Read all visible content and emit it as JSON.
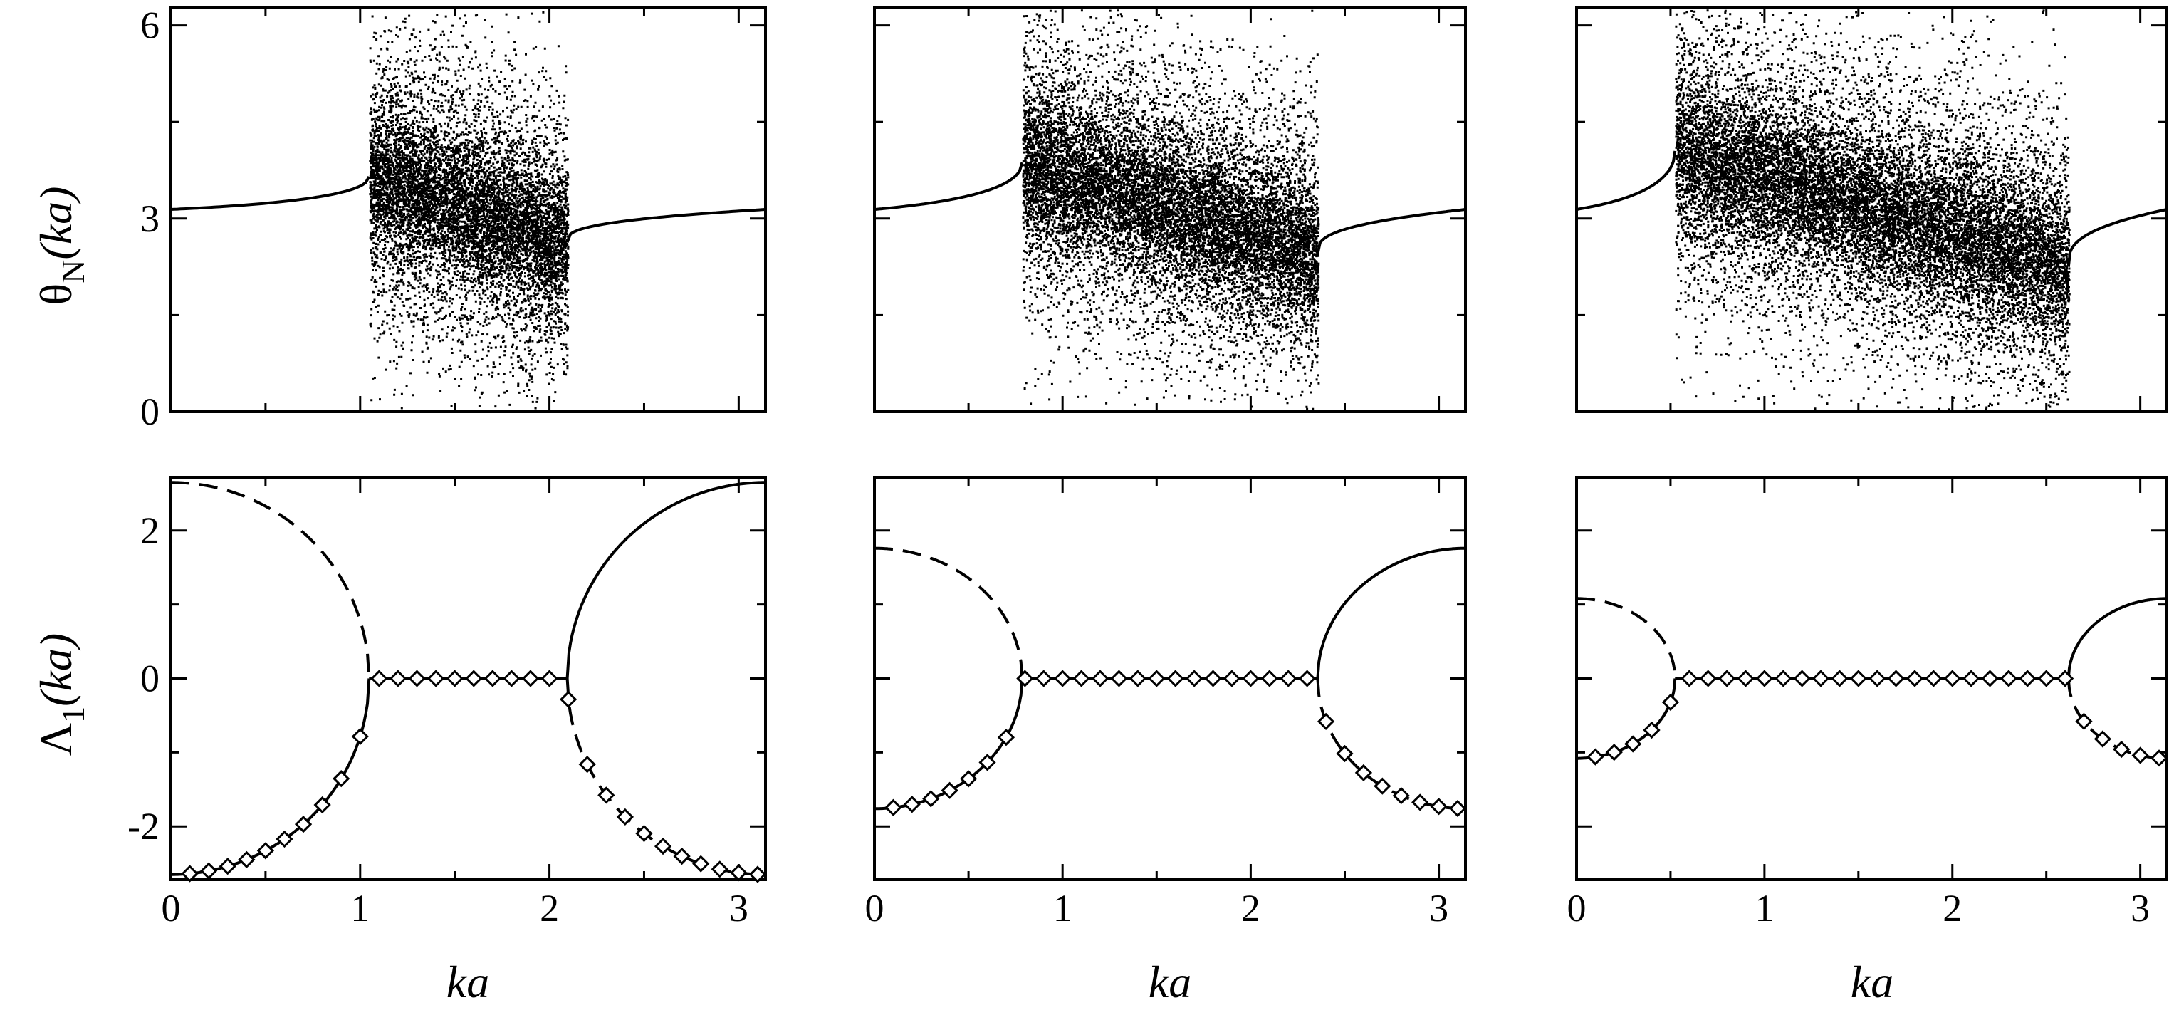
{
  "figure": {
    "x_label_main": "ka",
    "ylabels": {
      "top": {
        "symbol": "θ",
        "sub": "N",
        "arg": "(ka)"
      },
      "bottom": {
        "symbol": "Λ",
        "sub": "1",
        "arg": "(ka)"
      }
    }
  },
  "chart_data": [
    {
      "type": "scatter",
      "panel": "top-1",
      "xlim": [
        0,
        3.1416
      ],
      "ylim": [
        0,
        6.2832
      ],
      "xticks": [
        0,
        1,
        2,
        3
      ],
      "yticks": [
        0,
        3,
        6
      ],
      "ytick_labels": [
        "0",
        "3",
        "6"
      ],
      "xtick_labels_shown": false,
      "band": {
        "x_start": 1.047,
        "x_end": 2.094
      },
      "curve_left": {
        "x": [
          0,
          0.5,
          0.9,
          1.047
        ],
        "y": [
          3.1416,
          3.22,
          3.38,
          3.65
        ]
      },
      "curve_right": {
        "x": [
          2.094,
          2.3,
          2.7,
          3.1416
        ],
        "y": [
          2.63,
          2.87,
          3.02,
          3.1416
        ]
      },
      "scatter_density_center": {
        "x": [
          1.047,
          2.094
        ],
        "y": [
          3.65,
          2.63
        ]
      }
    },
    {
      "type": "scatter",
      "panel": "top-2",
      "xlim": [
        0,
        3.1416
      ],
      "ylim": [
        0,
        6.2832
      ],
      "xticks": [
        0,
        1,
        2,
        3
      ],
      "yticks": [
        0,
        3,
        6
      ],
      "xtick_labels_shown": false,
      "band": {
        "x_start": 0.785,
        "x_end": 2.356
      },
      "curve_left": {
        "x": [
          0,
          0.4,
          0.7,
          0.785
        ],
        "y": [
          3.1416,
          3.32,
          3.6,
          3.87
        ]
      },
      "curve_right": {
        "x": [
          2.356,
          2.6,
          2.9,
          3.1416
        ],
        "y": [
          2.45,
          2.75,
          2.95,
          3.1416
        ]
      },
      "scatter_density_center": {
        "x": [
          0.785,
          2.356
        ],
        "y": [
          3.87,
          2.45
        ]
      }
    },
    {
      "type": "scatter",
      "panel": "top-3",
      "xlim": [
        0,
        3.1416
      ],
      "ylim": [
        0,
        6.2832
      ],
      "xticks": [
        0,
        1,
        2,
        3
      ],
      "yticks": [
        0,
        3,
        6
      ],
      "xtick_labels_shown": false,
      "band": {
        "x_start": 0.524,
        "x_end": 2.618
      },
      "curve_left": {
        "x": [
          0,
          0.3,
          0.45,
          0.524
        ],
        "y": [
          3.1416,
          3.5,
          3.85,
          4.05
        ]
      },
      "curve_right": {
        "x": [
          2.618,
          2.8,
          3.0,
          3.1416
        ],
        "y": [
          2.25,
          2.6,
          2.9,
          3.1416
        ]
      },
      "scatter_density_center": {
        "x": [
          0.524,
          2.618
        ],
        "y": [
          4.05,
          2.25
        ]
      }
    },
    {
      "type": "line",
      "panel": "bottom-1",
      "xlim": [
        0,
        3.1416
      ],
      "ylim": [
        -2.72,
        2.72
      ],
      "xticks": [
        0,
        1,
        2,
        3
      ],
      "xtick_labels": [
        "0",
        "1",
        "2",
        "3"
      ],
      "yticks": [
        -2,
        0,
        2
      ],
      "ytick_labels": [
        "-2",
        "0",
        "2"
      ],
      "Amax": 2.65,
      "gap": [
        1.047,
        2.094
      ],
      "diamonds_x": [
        0.1,
        0.2,
        0.3,
        0.4,
        0.5,
        0.6,
        0.7,
        0.8,
        0.9,
        1.0,
        1.1,
        1.2,
        1.3,
        1.4,
        1.5,
        1.6,
        1.7,
        1.8,
        1.9,
        2.0,
        2.1,
        2.2,
        2.3,
        2.4,
        2.5,
        2.6,
        2.7,
        2.8,
        2.9,
        3.0,
        3.1
      ]
    },
    {
      "type": "line",
      "panel": "bottom-2",
      "xlim": [
        0,
        3.1416
      ],
      "ylim": [
        -2.72,
        2.72
      ],
      "xticks": [
        0,
        1,
        2,
        3
      ],
      "xtick_labels": [
        "0",
        "1",
        "2",
        "3"
      ],
      "yticks": [
        -2,
        0,
        2
      ],
      "Amax": 1.76,
      "gap": [
        0.785,
        2.356
      ],
      "diamonds_x": [
        0.1,
        0.2,
        0.3,
        0.4,
        0.5,
        0.6,
        0.7,
        0.8,
        0.9,
        1.0,
        1.1,
        1.2,
        1.3,
        1.4,
        1.5,
        1.6,
        1.7,
        1.8,
        1.9,
        2.0,
        2.1,
        2.2,
        2.3,
        2.4,
        2.5,
        2.6,
        2.7,
        2.8,
        2.9,
        3.0,
        3.1
      ]
    },
    {
      "type": "line",
      "panel": "bottom-3",
      "xlim": [
        0,
        3.1416
      ],
      "ylim": [
        -2.72,
        2.72
      ],
      "xticks": [
        0,
        1,
        2,
        3
      ],
      "xtick_labels": [
        "0",
        "1",
        "2",
        "3"
      ],
      "yticks": [
        -2,
        0,
        2
      ],
      "Amax": 1.08,
      "gap": [
        0.524,
        2.618
      ],
      "diamonds_x": [
        0.1,
        0.2,
        0.3,
        0.4,
        0.5,
        0.6,
        0.7,
        0.8,
        0.9,
        1.0,
        1.1,
        1.2,
        1.3,
        1.4,
        1.5,
        1.6,
        1.7,
        1.8,
        1.9,
        2.0,
        2.1,
        2.2,
        2.3,
        2.4,
        2.5,
        2.6,
        2.7,
        2.8,
        2.9,
        3.0,
        3.1
      ]
    }
  ]
}
